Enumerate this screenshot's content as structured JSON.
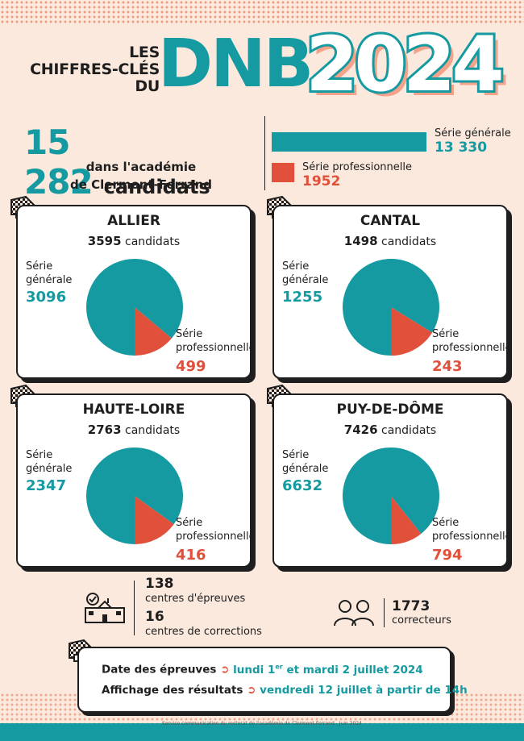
{
  "header": {
    "title_lines": [
      "LES",
      "CHIFFRES-CLÉS",
      "DU"
    ],
    "title_acronym": "DNB",
    "title_year": "2024"
  },
  "total": {
    "number": "15 282",
    "word": "candidats",
    "line1": "dans l'académie",
    "line2": "de Clermont-Ferrand"
  },
  "series_summary": {
    "generale_label": "Série générale",
    "generale_value": "13 330",
    "pro_label": "Série professionnelle",
    "pro_value": "1952"
  },
  "departments": [
    {
      "name": "ALLIER",
      "count": "3595",
      "unit": "candidats",
      "gen_label_1": "Série",
      "gen_label_2": "générale",
      "gen_value": "3096",
      "pro_label_1": "Série",
      "pro_label_2": "professionnelle",
      "pro_value": "499"
    },
    {
      "name": "CANTAL",
      "count": "1498",
      "unit": "candidats",
      "gen_label_1": "Série",
      "gen_label_2": "générale",
      "gen_value": "1255",
      "pro_label_1": "Série",
      "pro_label_2": "professionnelle",
      "pro_value": "243"
    },
    {
      "name": "HAUTE-LOIRE",
      "count": "2763",
      "unit": "candidats",
      "gen_label_1": "Série",
      "gen_label_2": "générale",
      "gen_value": "2347",
      "pro_label_1": "Série",
      "pro_label_2": "professionnelle",
      "pro_value": "416"
    },
    {
      "name": "PUY-DE-DÔME",
      "count": "7426",
      "unit": "candidats",
      "gen_label_1": "Série",
      "gen_label_2": "générale",
      "gen_value": "6632",
      "pro_label_1": "Série",
      "pro_label_2": "professionnelle",
      "pro_value": "794"
    }
  ],
  "centres": {
    "epreuves_number": "138",
    "epreuves_label": "centres d'épreuves",
    "corrections_number": "16",
    "corrections_label": "centres de corrections"
  },
  "correcteurs": {
    "number": "1773",
    "label": "correcteurs"
  },
  "dates": {
    "epreuves_label": "Date des épreuves",
    "epreuves_value_a": "lundi 1",
    "epreuves_value_sup": "er",
    "epreuves_value_b": " et mardi 2 juillet 2024",
    "resultats_label": "Affichage des résultats",
    "resultats_value": "vendredi 12 juillet à partir de 14h",
    "arrow_glyph": "➲"
  },
  "footer": "Service communication du rectorat de l'académie de Clermont-Ferrand - Juin 2024",
  "colors": {
    "generale": "#149aa0",
    "professionnelle": "#e0503a",
    "background": "#fbe9dd"
  },
  "chart_data": [
    {
      "type": "bar",
      "title": "",
      "categories": [
        "Série générale",
        "Série professionnelle"
      ],
      "values": [
        13330,
        1952
      ]
    },
    {
      "type": "pie",
      "title": "ALLIER",
      "categories": [
        "Série générale",
        "Série professionnelle"
      ],
      "values": [
        3096,
        499
      ]
    },
    {
      "type": "pie",
      "title": "CANTAL",
      "categories": [
        "Série générale",
        "Série professionnelle"
      ],
      "values": [
        1255,
        243
      ]
    },
    {
      "type": "pie",
      "title": "HAUTE-LOIRE",
      "categories": [
        "Série générale",
        "Série professionnelle"
      ],
      "values": [
        2347,
        416
      ]
    },
    {
      "type": "pie",
      "title": "PUY-DE-DÔME",
      "categories": [
        "Série générale",
        "Série professionnelle"
      ],
      "values": [
        6632,
        794
      ]
    }
  ]
}
